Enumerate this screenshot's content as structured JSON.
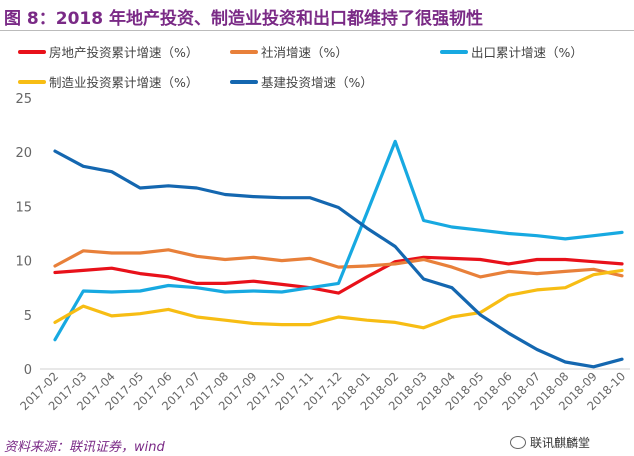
{
  "title": "图 8：2018 年地产投资、制造业投资和出口都维持了很强韧性",
  "source": "资料来源：联讯证券，wind",
  "logo_text": "联讯麒麟堂",
  "logo_icon": "wechat-icon",
  "chart_data": {
    "type": "line",
    "title": "",
    "xlabel": "",
    "ylabel": "",
    "ylim": [
      0,
      25
    ],
    "yticks": [
      0,
      5,
      10,
      15,
      20,
      25
    ],
    "grid": false,
    "legend_position": "top",
    "categories": [
      "2017-02",
      "2017-03",
      "2017-04",
      "2017-05",
      "2017-06",
      "2017-07",
      "2017-08",
      "2017-09",
      "2017-10",
      "2017-11",
      "2017-12",
      "2018-01",
      "2018-02",
      "2018-03",
      "2018-04",
      "2018-05",
      "2018-06",
      "2018-07",
      "2018-08",
      "2018-09",
      "2018-10"
    ],
    "series": [
      {
        "name": "房地产投资累计增速（%）",
        "color": "#e8111a",
        "values": [
          8.9,
          9.1,
          9.3,
          8.8,
          8.5,
          7.9,
          7.9,
          8.1,
          7.8,
          7.5,
          7.0,
          8.5,
          9.9,
          10.3,
          10.2,
          10.1,
          9.7,
          10.1,
          10.1,
          9.9,
          9.7
        ]
      },
      {
        "name": "社消增速（%）",
        "color": "#e8803a",
        "values": [
          9.5,
          10.9,
          10.7,
          10.7,
          11.0,
          10.4,
          10.1,
          10.3,
          10.0,
          10.2,
          9.4,
          9.5,
          9.7,
          10.1,
          9.4,
          8.5,
          9.0,
          8.8,
          9.0,
          9.2,
          8.6
        ]
      },
      {
        "name": "出口累计增速（%）",
        "color": "#17a9e1",
        "values": [
          2.7,
          7.2,
          7.1,
          7.2,
          7.7,
          7.5,
          7.1,
          7.2,
          7.1,
          7.5,
          7.9,
          14.4,
          21.0,
          13.7,
          13.1,
          12.8,
          12.5,
          12.3,
          12.0,
          12.3,
          12.6
        ]
      },
      {
        "name": "制造业投资累计增速（%）",
        "color": "#f7bd14",
        "values": [
          4.3,
          5.8,
          4.9,
          5.1,
          5.5,
          4.8,
          4.5,
          4.2,
          4.1,
          4.1,
          4.8,
          4.5,
          4.3,
          3.8,
          4.8,
          5.2,
          6.8,
          7.3,
          7.5,
          8.7,
          9.1
        ]
      },
      {
        "name": "基建投资增速（%）",
        "color": "#1467b0",
        "values": [
          20.1,
          18.7,
          18.2,
          16.7,
          16.9,
          16.7,
          16.1,
          15.9,
          15.8,
          15.8,
          14.9,
          13.0,
          11.3,
          8.3,
          7.5,
          5.0,
          3.3,
          1.8,
          0.65,
          0.2,
          0.9
        ]
      }
    ]
  }
}
